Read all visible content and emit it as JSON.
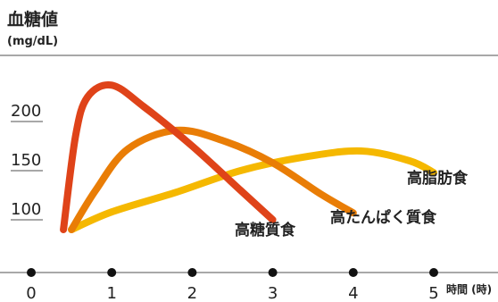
{
  "chart_data": {
    "type": "line",
    "ylabel": "血糖値",
    "yunit": "(mg/dL)",
    "xunit": "時間 (時)",
    "xlim": [
      0,
      5
    ],
    "ylim": [
      100,
      250
    ],
    "yticks": [
      100,
      150,
      200
    ],
    "xticks": [
      0,
      1,
      2,
      3,
      4,
      5
    ],
    "series": [
      {
        "name": "高糖質食",
        "color": "#df4319",
        "points": [
          [
            0.4,
            90
          ],
          [
            0.55,
            185
          ],
          [
            0.7,
            225
          ],
          [
            1.0,
            237
          ],
          [
            1.4,
            215
          ],
          [
            2.0,
            175
          ],
          [
            2.6,
            130
          ],
          [
            3.0,
            100
          ]
        ]
      },
      {
        "name": "高たんぱく質食",
        "color": "#e97d06",
        "points": [
          [
            0.5,
            90
          ],
          [
            0.8,
            130
          ],
          [
            1.2,
            172
          ],
          [
            1.8,
            191
          ],
          [
            2.4,
            180
          ],
          [
            3.0,
            158
          ],
          [
            3.6,
            126
          ],
          [
            4.0,
            107
          ]
        ]
      },
      {
        "name": "高脂肪食",
        "color": "#f5b800",
        "points": [
          [
            0.5,
            90
          ],
          [
            1.0,
            108
          ],
          [
            1.8,
            128
          ],
          [
            2.6,
            150
          ],
          [
            3.4,
            164
          ],
          [
            4.1,
            170
          ],
          [
            4.7,
            160
          ],
          [
            5.0,
            148
          ]
        ]
      }
    ],
    "grid": false
  }
}
